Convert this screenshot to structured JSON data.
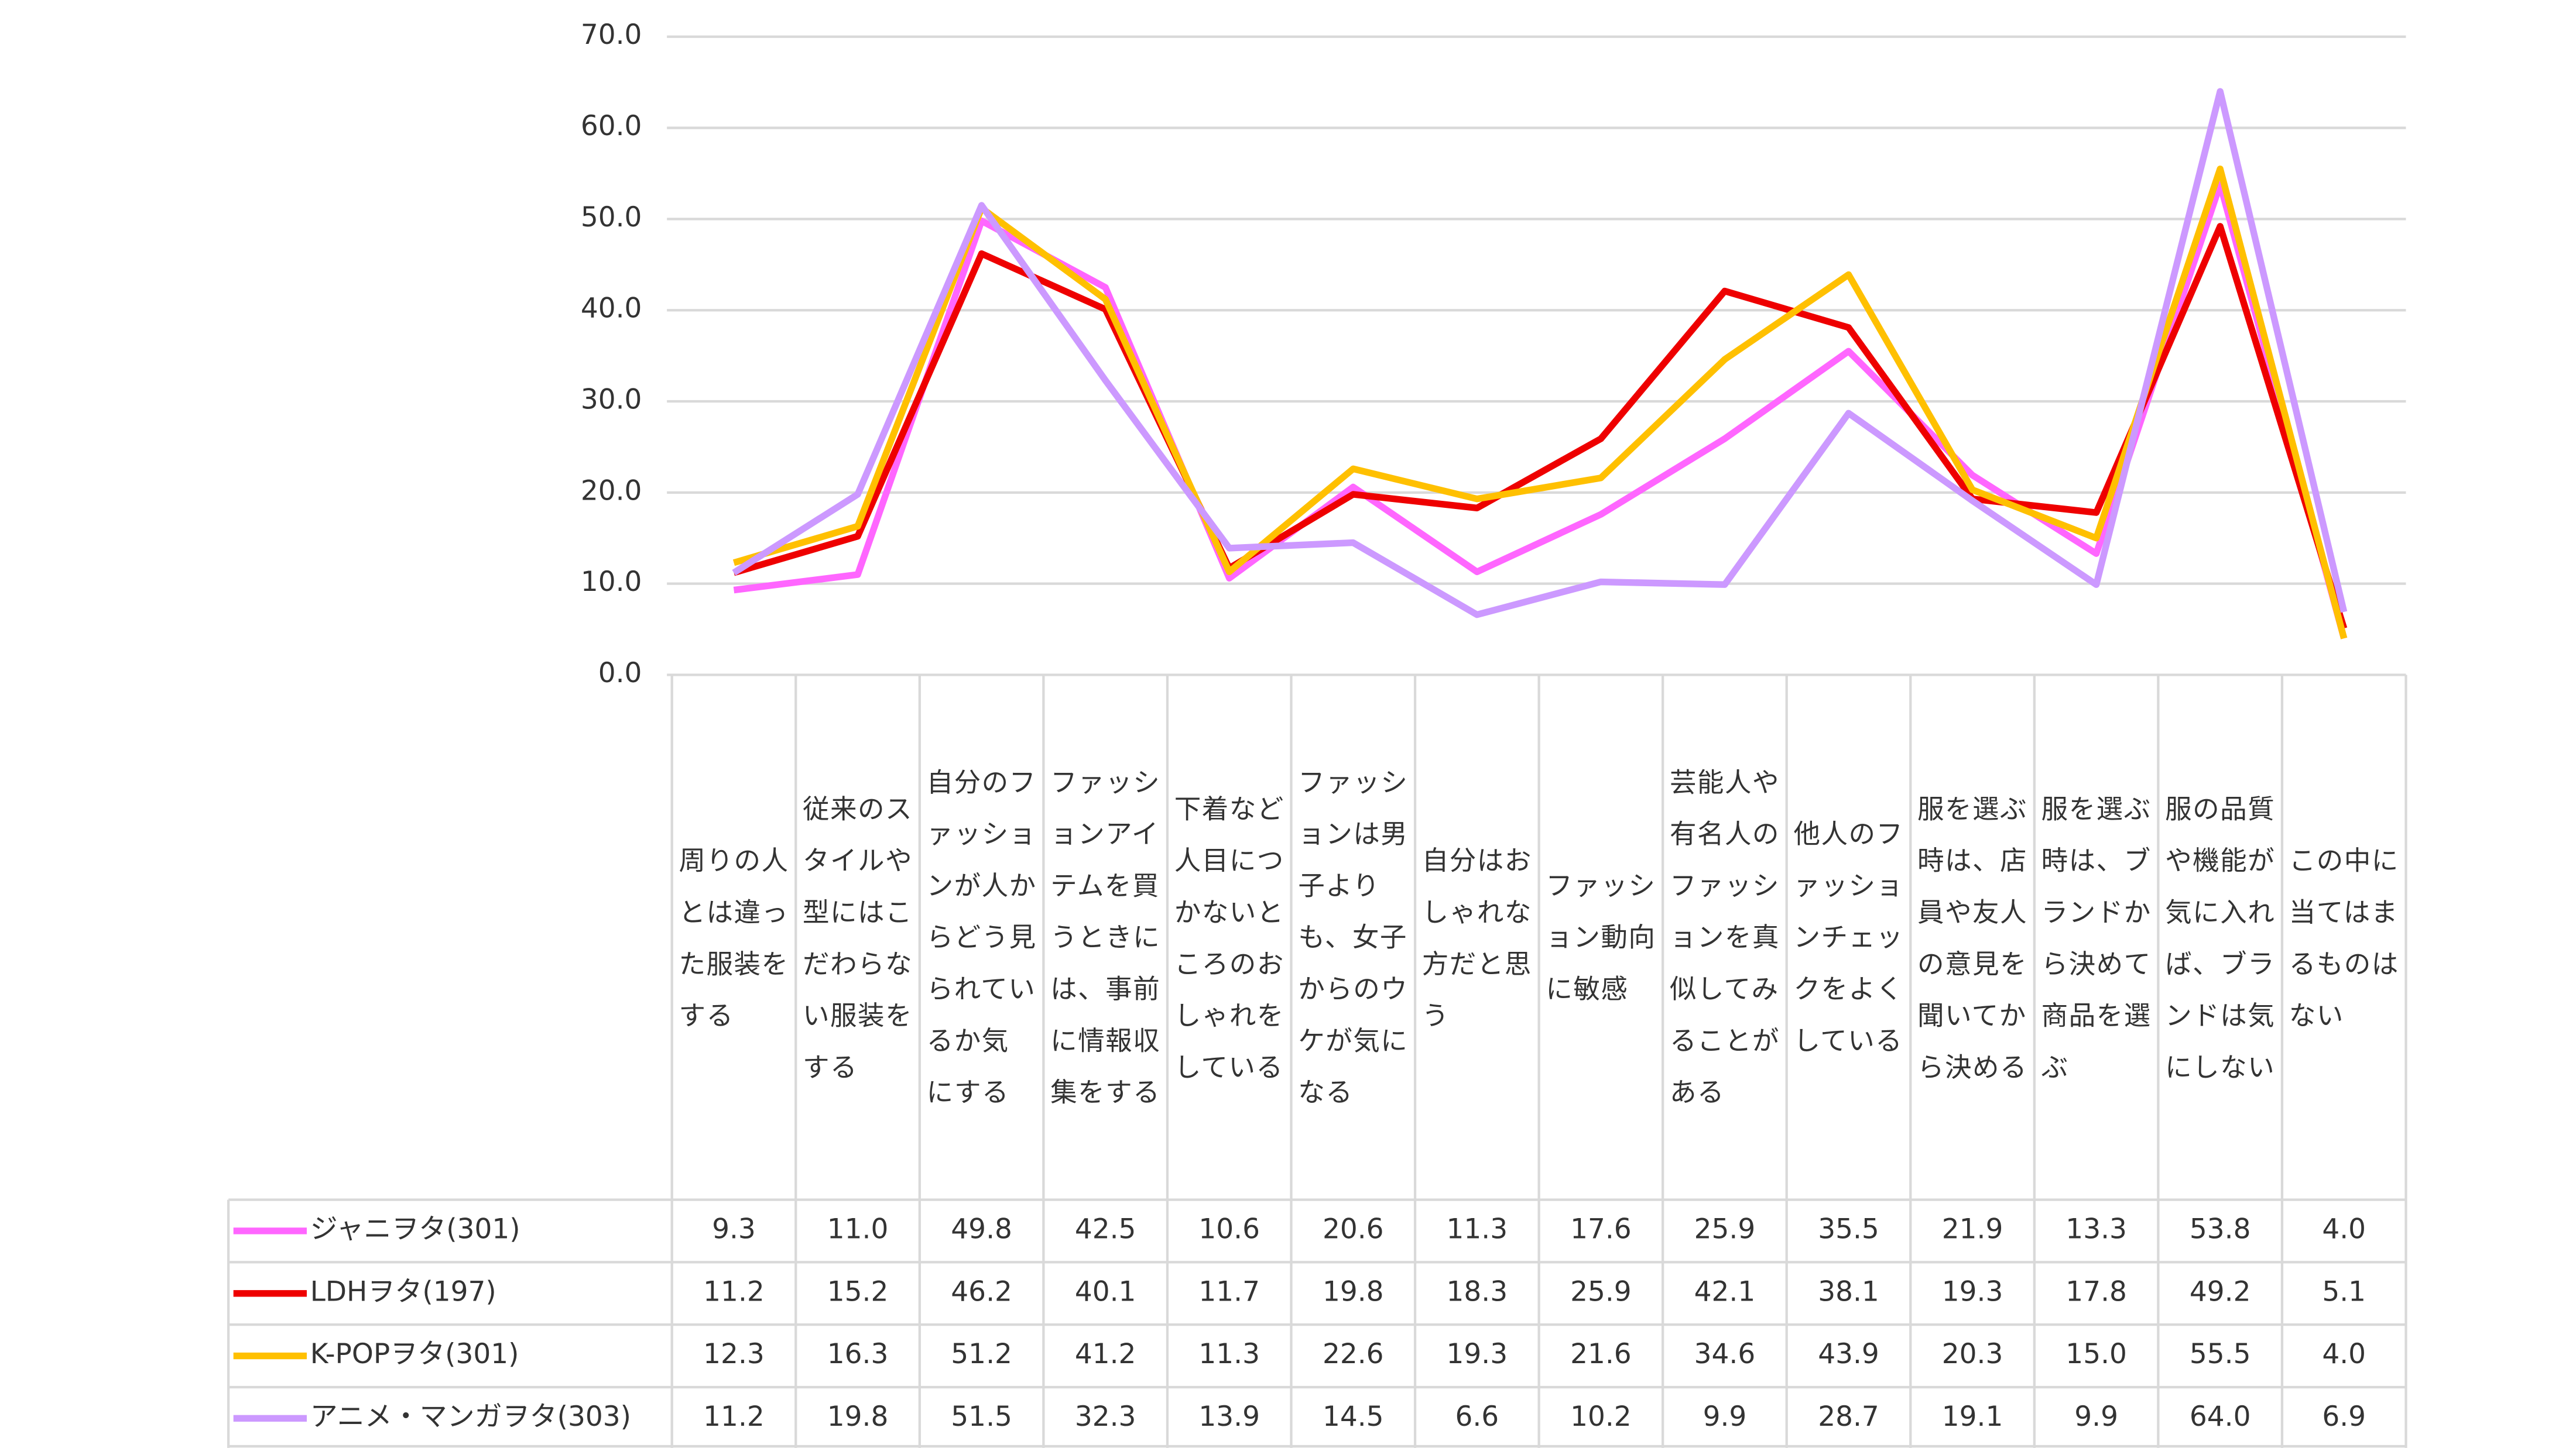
{
  "chart_data": {
    "type": "line",
    "categories": [
      "周りの人とは違った服装をする",
      "従来のスタイルや型にはこだわらない服装をする",
      "自分のファッションが人からどう見られているか気にする",
      "ファッションアイテムを買うときには、事前に情報収集をする",
      "下着など人目につかないところのおしゃれをしている",
      "ファッションは男子よりも、女子からのウケが気になる",
      "自分はおしゃれな方だと思う",
      "ファッション動向に敏感",
      "芸能人や有名人のファッションを真似してみることがある",
      "他人のファッションチェックをよくしている",
      "服を選ぶ時は、店員や友人の意見を聞いてから決める",
      "服を選ぶ時は、ブランドから決めて商品を選ぶ",
      "服の品質や機能が気に入れば、ブランドは気にしない",
      "この中に当てはまるものはない"
    ],
    "series": [
      {
        "name": "ジャニヲタ(301)",
        "color": "#ff66ff",
        "values": [
          9.3,
          11.0,
          49.8,
          42.5,
          10.6,
          20.6,
          11.3,
          17.6,
          25.9,
          35.5,
          21.9,
          13.3,
          53.8,
          4.0
        ],
        "value_labels": [
          "9.3",
          "11.0",
          "49.8",
          "42.5",
          "10.6",
          "20.6",
          "11.3",
          "17.6",
          "25.9",
          "35.5",
          "21.9",
          "13.3",
          "53.8",
          "4.0"
        ]
      },
      {
        "name": "LDHヲタ(197)",
        "color": "#ee0000",
        "values": [
          11.2,
          15.2,
          46.2,
          40.1,
          11.7,
          19.8,
          18.3,
          25.9,
          42.1,
          38.1,
          19.3,
          17.8,
          49.2,
          5.1
        ],
        "value_labels": [
          "11.2",
          "15.2",
          "46.2",
          "40.1",
          "11.7",
          "19.8",
          "18.3",
          "25.9",
          "42.1",
          "38.1",
          "19.3",
          "17.8",
          "49.2",
          "5.1"
        ]
      },
      {
        "name": "K-POPヲタ(301)",
        "color": "#ffc000",
        "values": [
          12.3,
          16.3,
          51.2,
          41.2,
          11.3,
          22.6,
          19.3,
          21.6,
          34.6,
          43.9,
          20.3,
          15.0,
          55.5,
          4.0
        ],
        "value_labels": [
          "12.3",
          "16.3",
          "51.2",
          "41.2",
          "11.3",
          "22.6",
          "19.3",
          "21.6",
          "34.6",
          "43.9",
          "20.3",
          "15.0",
          "55.5",
          "4.0"
        ]
      },
      {
        "name": "アニメ・マンガヲタ(303)",
        "color": "#cc99ff",
        "values": [
          11.2,
          19.8,
          51.5,
          32.3,
          13.9,
          14.5,
          6.6,
          10.2,
          9.9,
          28.7,
          19.1,
          9.9,
          64.0,
          6.9
        ],
        "value_labels": [
          "11.2",
          "19.8",
          "51.5",
          "32.3",
          "13.9",
          "14.5",
          "6.6",
          "10.2",
          "9.9",
          "28.7",
          "19.1",
          "9.9",
          "64.0",
          "6.9"
        ]
      }
    ],
    "ylim": [
      0,
      70
    ],
    "yticks": [
      {
        "value": 0,
        "label": "0.0"
      },
      {
        "value": 10,
        "label": "10.0"
      },
      {
        "value": 20,
        "label": "20.0"
      },
      {
        "value": 30,
        "label": "30.0"
      },
      {
        "value": 40,
        "label": "40.0"
      },
      {
        "value": 50,
        "label": "50.0"
      },
      {
        "value": 60,
        "label": "60.0"
      },
      {
        "value": 70,
        "label": "70.0"
      }
    ],
    "grid": true
  }
}
